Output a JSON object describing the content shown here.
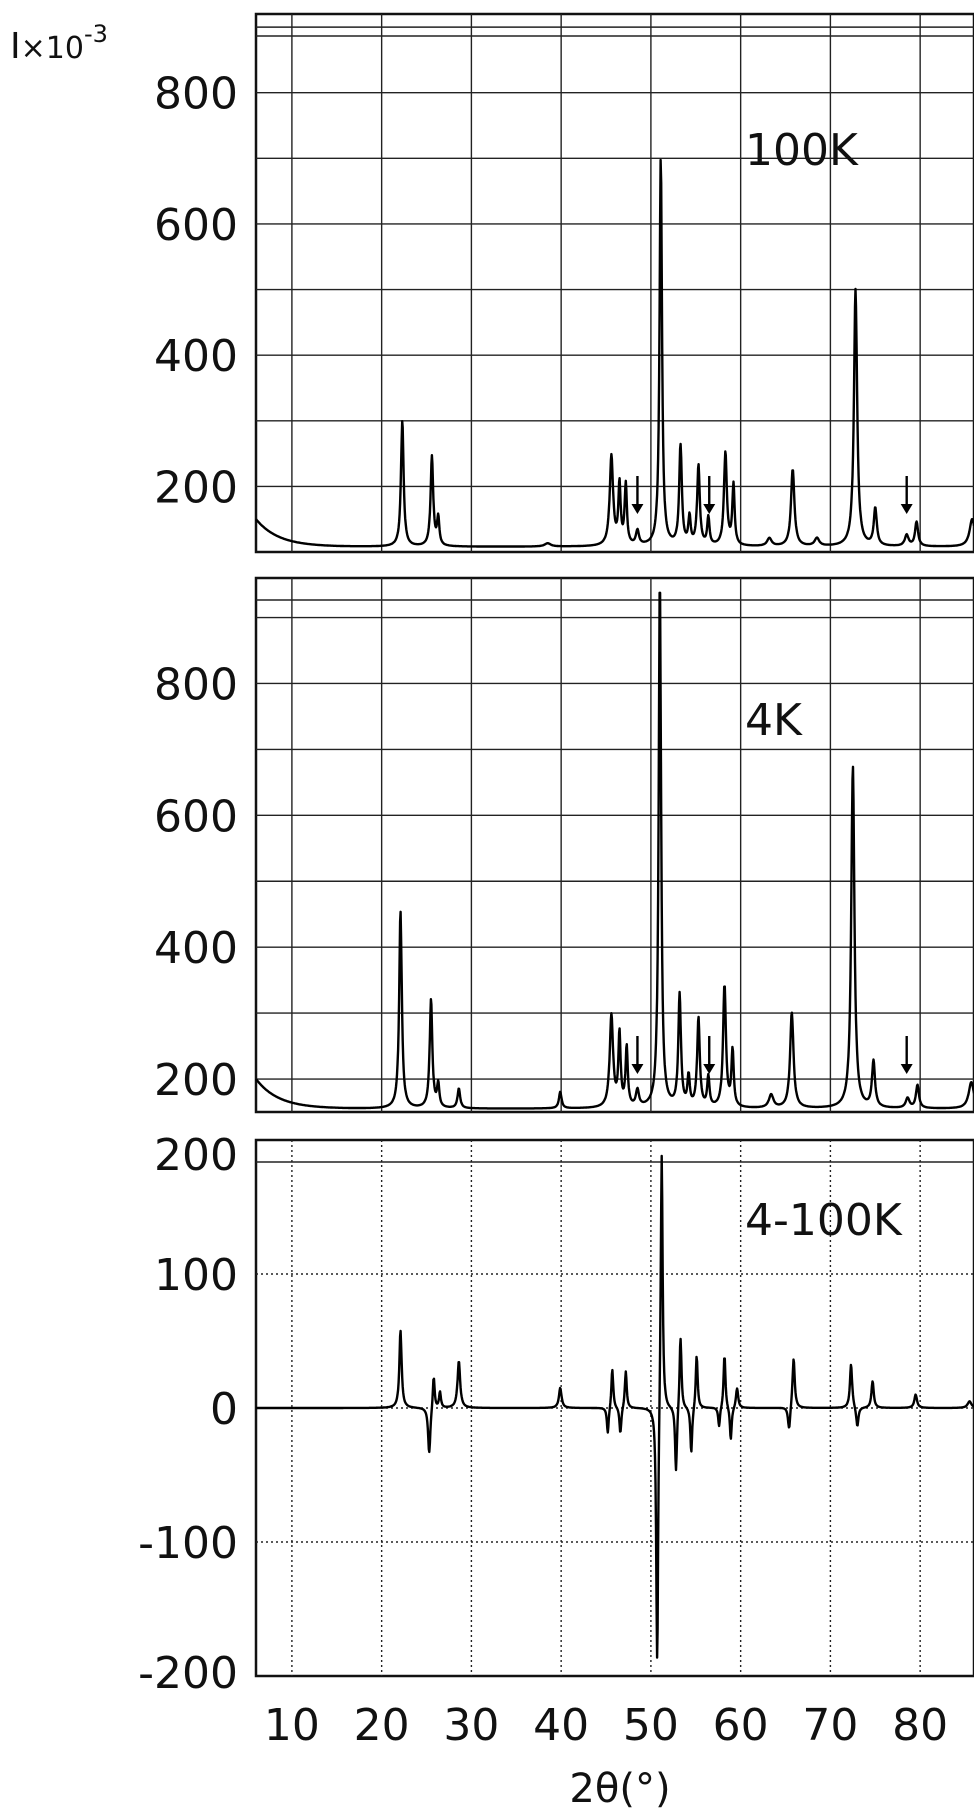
{
  "y_unit_label": {
    "base": "I",
    "mult": "×10",
    "exp": "-3"
  },
  "x_axis": {
    "label": "2θ(°)",
    "ticks": [
      10,
      20,
      30,
      40,
      50,
      60,
      70,
      80
    ],
    "range": [
      6,
      86
    ]
  },
  "chart_data": [
    {
      "type": "line",
      "annotation": "100K",
      "ylim": [
        100,
        920
      ],
      "yticks": [
        200,
        400,
        600,
        800
      ],
      "grid": true,
      "baseline": 108,
      "markers_x": [
        48.5,
        56.5,
        78.5
      ],
      "peaks": [
        {
          "x": 22.3,
          "y": 300,
          "w": 0.35
        },
        {
          "x": 25.6,
          "y": 245,
          "w": 0.35
        },
        {
          "x": 26.3,
          "y": 150,
          "w": 0.3
        },
        {
          "x": 38.5,
          "y": 113,
          "w": 0.8
        },
        {
          "x": 45.6,
          "y": 245,
          "w": 0.45
        },
        {
          "x": 46.5,
          "y": 200,
          "w": 0.3
        },
        {
          "x": 47.2,
          "y": 200,
          "w": 0.3
        },
        {
          "x": 48.5,
          "y": 130,
          "w": 0.4
        },
        {
          "x": 51.1,
          "y": 700,
          "w": 0.32
        },
        {
          "x": 53.3,
          "y": 260,
          "w": 0.35
        },
        {
          "x": 54.3,
          "y": 150,
          "w": 0.3
        },
        {
          "x": 55.3,
          "y": 230,
          "w": 0.35
        },
        {
          "x": 56.4,
          "y": 150,
          "w": 0.3
        },
        {
          "x": 58.3,
          "y": 250,
          "w": 0.38
        },
        {
          "x": 59.2,
          "y": 200,
          "w": 0.3
        },
        {
          "x": 63.2,
          "y": 120,
          "w": 0.6
        },
        {
          "x": 65.8,
          "y": 225,
          "w": 0.45
        },
        {
          "x": 68.5,
          "y": 120,
          "w": 0.6
        },
        {
          "x": 72.8,
          "y": 500,
          "w": 0.42
        },
        {
          "x": 75.0,
          "y": 165,
          "w": 0.4
        },
        {
          "x": 78.5,
          "y": 125,
          "w": 0.5
        },
        {
          "x": 79.6,
          "y": 145,
          "w": 0.4
        },
        {
          "x": 85.8,
          "y": 150,
          "w": 0.7
        }
      ],
      "start_y": 150
    },
    {
      "type": "line",
      "annotation": "4K",
      "ylim": [
        150,
        960
      ],
      "yticks": [
        200,
        400,
        600,
        800
      ],
      "grid": true,
      "baseline": 155,
      "markers_x": [
        48.5,
        56.5,
        78.5
      ],
      "peaks": [
        {
          "x": 22.1,
          "y": 455,
          "w": 0.35
        },
        {
          "x": 25.5,
          "y": 320,
          "w": 0.35
        },
        {
          "x": 26.3,
          "y": 190,
          "w": 0.3
        },
        {
          "x": 28.6,
          "y": 185,
          "w": 0.35
        },
        {
          "x": 39.9,
          "y": 180,
          "w": 0.35
        },
        {
          "x": 45.6,
          "y": 295,
          "w": 0.45
        },
        {
          "x": 46.5,
          "y": 265,
          "w": 0.3
        },
        {
          "x": 47.3,
          "y": 245,
          "w": 0.3
        },
        {
          "x": 48.5,
          "y": 180,
          "w": 0.4
        },
        {
          "x": 51.0,
          "y": 960,
          "w": 0.32
        },
        {
          "x": 53.2,
          "y": 325,
          "w": 0.35
        },
        {
          "x": 54.2,
          "y": 200,
          "w": 0.3
        },
        {
          "x": 55.3,
          "y": 290,
          "w": 0.35
        },
        {
          "x": 56.4,
          "y": 200,
          "w": 0.3
        },
        {
          "x": 58.2,
          "y": 340,
          "w": 0.38
        },
        {
          "x": 59.1,
          "y": 240,
          "w": 0.3
        },
        {
          "x": 63.4,
          "y": 175,
          "w": 0.6
        },
        {
          "x": 65.7,
          "y": 300,
          "w": 0.45
        },
        {
          "x": 72.5,
          "y": 675,
          "w": 0.42
        },
        {
          "x": 74.8,
          "y": 225,
          "w": 0.4
        },
        {
          "x": 78.6,
          "y": 170,
          "w": 0.5
        },
        {
          "x": 79.7,
          "y": 190,
          "w": 0.4
        },
        {
          "x": 85.7,
          "y": 195,
          "w": 0.7
        }
      ],
      "start_y": 200
    },
    {
      "type": "line",
      "annotation": "4-100K",
      "ylim": [
        -200,
        200
      ],
      "yticks": [
        -200,
        -100,
        0,
        100,
        200
      ],
      "grid": true,
      "grid_style": "dotted",
      "baseline": 0,
      "peaks": [
        {
          "x": 22.1,
          "y": 58,
          "w": 0.3
        },
        {
          "x": 25.3,
          "y": -35,
          "w": 0.3
        },
        {
          "x": 25.8,
          "y": 25,
          "w": 0.25
        },
        {
          "x": 26.5,
          "y": 12,
          "w": 0.25
        },
        {
          "x": 28.6,
          "y": 35,
          "w": 0.35
        },
        {
          "x": 39.9,
          "y": 15,
          "w": 0.35
        },
        {
          "x": 45.2,
          "y": -20,
          "w": 0.25
        },
        {
          "x": 45.7,
          "y": 30,
          "w": 0.25
        },
        {
          "x": 46.6,
          "y": -20,
          "w": 0.25
        },
        {
          "x": 47.2,
          "y": 28,
          "w": 0.25
        },
        {
          "x": 50.7,
          "y": -200,
          "w": 0.25
        },
        {
          "x": 51.2,
          "y": 200,
          "w": 0.25
        },
        {
          "x": 52.8,
          "y": -50,
          "w": 0.25
        },
        {
          "x": 53.3,
          "y": 55,
          "w": 0.25
        },
        {
          "x": 54.5,
          "y": -35,
          "w": 0.25
        },
        {
          "x": 55.1,
          "y": 40,
          "w": 0.25
        },
        {
          "x": 57.6,
          "y": -15,
          "w": 0.25
        },
        {
          "x": 58.2,
          "y": 40,
          "w": 0.25
        },
        {
          "x": 58.9,
          "y": -25,
          "w": 0.25
        },
        {
          "x": 59.6,
          "y": 15,
          "w": 0.3
        },
        {
          "x": 65.4,
          "y": -18,
          "w": 0.3
        },
        {
          "x": 65.9,
          "y": 38,
          "w": 0.3
        },
        {
          "x": 72.3,
          "y": 33,
          "w": 0.3
        },
        {
          "x": 73.0,
          "y": -15,
          "w": 0.3
        },
        {
          "x": 74.7,
          "y": 20,
          "w": 0.3
        },
        {
          "x": 79.5,
          "y": 10,
          "w": 0.35
        },
        {
          "x": 85.5,
          "y": 5,
          "w": 0.5
        }
      ],
      "start_y": 0
    }
  ]
}
